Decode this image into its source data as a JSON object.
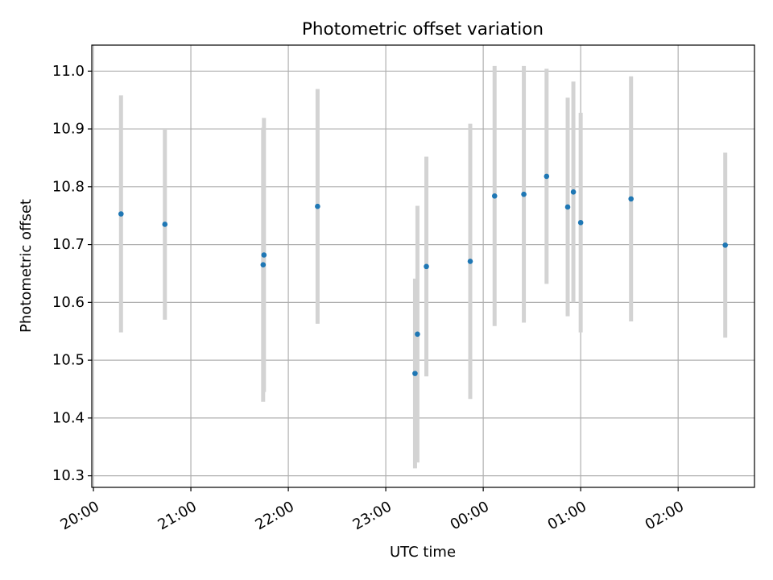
{
  "chart_data": {
    "type": "scatter",
    "title": "Photometric offset variation",
    "xlabel": "UTC time",
    "ylabel": "Photometric offset",
    "grid": true,
    "legend": "none",
    "xlim": [
      "2000-01-01T19:59:00",
      "2000-01-02T02:47:00"
    ],
    "ylim": [
      10.28,
      11.045
    ],
    "xticks": [
      {
        "t": "2000-01-01T20:00",
        "label": "20:00"
      },
      {
        "t": "2000-01-01T21:00",
        "label": "21:00"
      },
      {
        "t": "2000-01-01T22:00",
        "label": "22:00"
      },
      {
        "t": "2000-01-01T23:00",
        "label": "23:00"
      },
      {
        "t": "2000-01-02T00:00",
        "label": "00:00"
      },
      {
        "t": "2000-01-02T01:00",
        "label": "01:00"
      },
      {
        "t": "2000-01-02T02:00",
        "label": "02:00"
      }
    ],
    "yticks": [
      {
        "v": 10.3,
        "label": "10.3"
      },
      {
        "v": 10.4,
        "label": "10.4"
      },
      {
        "v": 10.5,
        "label": "10.5"
      },
      {
        "v": 10.6,
        "label": "10.6"
      },
      {
        "v": 10.7,
        "label": "10.7"
      },
      {
        "v": 10.8,
        "label": "10.8"
      },
      {
        "v": 10.9,
        "label": "10.9"
      },
      {
        "v": 11.0,
        "label": "11.0"
      }
    ],
    "series": [
      {
        "marker_color": "#1f77b4",
        "errorbar_color": "#d3d3d3",
        "points": [
          {
            "t": "2000-01-01T20:17:00",
            "y": 10.753,
            "ymin": 10.548,
            "ymax": 10.958
          },
          {
            "t": "2000-01-01T20:44:00",
            "y": 10.735,
            "ymin": 10.57,
            "ymax": 10.9
          },
          {
            "t": "2000-01-01T21:44:30",
            "y": 10.665,
            "ymin": 10.428,
            "ymax": 10.902
          },
          {
            "t": "2000-01-01T21:45:00",
            "y": 10.682,
            "ymin": 10.445,
            "ymax": 10.919
          },
          {
            "t": "2000-01-01T22:18:00",
            "y": 10.766,
            "ymin": 10.563,
            "ymax": 10.969
          },
          {
            "t": "2000-01-01T23:18:00",
            "y": 10.477,
            "ymin": 10.313,
            "ymax": 10.641
          },
          {
            "t": "2000-01-01T23:19:30",
            "y": 10.545,
            "ymin": 10.323,
            "ymax": 10.767
          },
          {
            "t": "2000-01-01T23:25:00",
            "y": 10.662,
            "ymin": 10.472,
            "ymax": 10.852
          },
          {
            "t": "2000-01-01T23:52:00",
            "y": 10.671,
            "ymin": 10.433,
            "ymax": 10.909
          },
          {
            "t": "2000-01-02T00:07:00",
            "y": 10.784,
            "ymin": 10.559,
            "ymax": 11.009
          },
          {
            "t": "2000-01-02T00:25:00",
            "y": 10.787,
            "ymin": 10.565,
            "ymax": 11.009
          },
          {
            "t": "2000-01-02T00:39:00",
            "y": 10.818,
            "ymin": 10.632,
            "ymax": 11.004
          },
          {
            "t": "2000-01-02T00:52:00",
            "y": 10.765,
            "ymin": 10.576,
            "ymax": 10.954
          },
          {
            "t": "2000-01-02T00:55:30",
            "y": 10.791,
            "ymin": 10.6,
            "ymax": 10.982
          },
          {
            "t": "2000-01-02T01:00:00",
            "y": 10.738,
            "ymin": 10.548,
            "ymax": 10.928
          },
          {
            "t": "2000-01-02T01:31:00",
            "y": 10.779,
            "ymin": 10.567,
            "ymax": 10.991
          },
          {
            "t": "2000-01-02T02:29:00",
            "y": 10.699,
            "ymin": 10.539,
            "ymax": 10.859
          }
        ]
      }
    ]
  }
}
